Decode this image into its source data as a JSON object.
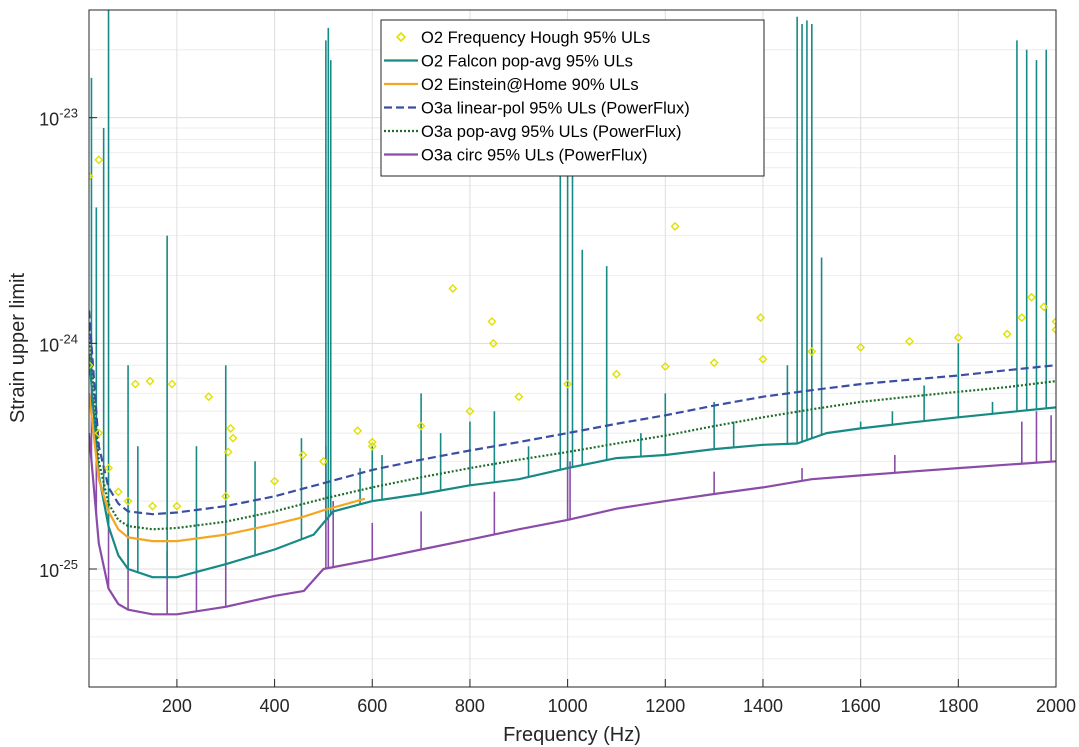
{
  "chart_data": {
    "type": "line",
    "title": "",
    "xlabel": "Frequency (Hz)",
    "ylabel": "Strain upper limit",
    "xlim": [
      20,
      2000
    ],
    "ylim": [
      3e-26,
      3e-23
    ],
    "yscale": "log",
    "grid": true,
    "legend_position": "top-center",
    "x_ticks": [
      200,
      400,
      600,
      800,
      1000,
      1200,
      1400,
      1600,
      1800,
      2000
    ],
    "x_tick_labels": [
      "200",
      "400",
      "600",
      "800",
      "1000",
      "1200",
      "1400",
      "1600",
      "1800",
      "2000"
    ],
    "y_ticks": [
      1e-25,
      1e-24,
      1e-23
    ],
    "y_tick_labels": [
      {
        "base": "10",
        "exp": "-25"
      },
      {
        "base": "10",
        "exp": "-24"
      },
      {
        "base": "10",
        "exp": "-23"
      }
    ],
    "series": [
      {
        "name": "O2 Frequency Hough 95% ULs",
        "style": "diamond-markers",
        "color": "#e0e000",
        "x": [
          20,
          40,
          60,
          80,
          100,
          150,
          200,
          300,
          400,
          500,
          600,
          700,
          800,
          900,
          1000,
          1100,
          1200,
          1300,
          1400,
          1500,
          1600,
          1700,
          1800,
          1900,
          2000
        ],
        "y": [
          8e-25,
          4e-25,
          2.8e-25,
          2.2e-25,
          2e-25,
          1.9e-25,
          1.9e-25,
          2.1e-25,
          2.45e-25,
          3e-25,
          3.65e-25,
          4.3e-25,
          5e-25,
          5.8e-25,
          6.6e-25,
          7.3e-25,
          7.9e-25,
          8.2e-25,
          8.5e-25,
          9.2e-25,
          9.6e-25,
          1.02e-24,
          1.06e-24,
          1.1e-24,
          1.15e-24
        ],
        "outliers": {
          "x": [
            20,
            40,
            115,
            145,
            190,
            265,
            305,
            310,
            315,
            458,
            570,
            600,
            765,
            845,
            848,
            1220,
            1395,
            1930,
            1950,
            1975,
            2000
          ],
          "y": [
            5.5e-24,
            6.5e-24,
            6.6e-25,
            6.8e-25,
            6.6e-25,
            5.8e-25,
            3.3e-25,
            4.2e-25,
            3.8e-25,
            3.2e-25,
            4.1e-25,
            3.5e-25,
            1.75e-24,
            1.25e-24,
            1e-24,
            3.3e-24,
            1.3e-24,
            1.3e-24,
            1.6e-24,
            1.45e-24,
            1.25e-24
          ]
        }
      },
      {
        "name": "O2 Falcon pop-avg 95% ULs",
        "style": "solid",
        "color": "#178a86",
        "x": [
          20,
          40,
          60,
          80,
          100,
          150,
          200,
          300,
          400,
          480,
          520,
          600,
          700,
          800,
          900,
          1000,
          1100,
          1200,
          1300,
          1400,
          1470,
          1530,
          1600,
          1700,
          1800,
          1900,
          1920,
          2000
        ],
        "y": [
          9e-25,
          2.6e-25,
          1.55e-25,
          1.15e-25,
          1e-25,
          9.2e-26,
          9.2e-26,
          1.05e-25,
          1.22e-25,
          1.42e-25,
          1.8e-25,
          2e-25,
          2.15e-25,
          2.35e-25,
          2.5e-25,
          2.8e-25,
          3.1e-25,
          3.2e-25,
          3.4e-25,
          3.55e-25,
          3.6e-25,
          4e-25,
          4.2e-25,
          4.45e-25,
          4.7e-25,
          4.95e-25,
          5e-25,
          5.2e-25
        ],
        "spikes": {
          "x": [
            25,
            35,
            50,
            60,
            100,
            120,
            180,
            240,
            300,
            360,
            455,
            505,
            510,
            515,
            575,
            600,
            620,
            700,
            740,
            800,
            850,
            920,
            985,
            1000,
            1010,
            1030,
            1080,
            1150,
            1200,
            1300,
            1340,
            1450,
            1470,
            1480,
            1490,
            1500,
            1520,
            1600,
            1665,
            1730,
            1800,
            1870,
            1920,
            1940,
            1960,
            1980
          ],
          "y": [
            1.5e-23,
            4e-24,
            9e-24,
            3e-23,
            8e-25,
            3.5e-25,
            3e-24,
            3.5e-25,
            8e-25,
            3e-25,
            3.8e-25,
            2.2e-23,
            2.5e-23,
            1.8e-23,
            2.8e-25,
            3.5e-25,
            3.2e-25,
            6e-25,
            4e-25,
            4.5e-25,
            5e-25,
            3.5e-25,
            6e-24,
            1.4e-23,
            1.2e-23,
            2.6e-24,
            2.2e-24,
            4e-25,
            6e-25,
            5.5e-25,
            4.5e-25,
            8e-25,
            2.8e-23,
            2.6e-23,
            2.7e-23,
            2.6e-23,
            2.4e-24,
            4.5e-25,
            5e-25,
            6.5e-25,
            1e-24,
            5.5e-25,
            2.2e-23,
            2e-23,
            1.8e-23,
            2e-23
          ]
        }
      },
      {
        "name": "O2 Einstein@Home 90% ULs",
        "style": "solid",
        "color": "#f5a623",
        "x": [
          20,
          40,
          60,
          80,
          100,
          150,
          200,
          300,
          400,
          450,
          500,
          550,
          585
        ],
        "y": [
          6e-25,
          2.5e-25,
          1.8e-25,
          1.5e-25,
          1.38e-25,
          1.33e-25,
          1.33e-25,
          1.42e-25,
          1.58e-25,
          1.68e-25,
          1.82e-25,
          1.95e-25,
          2.05e-25
        ]
      },
      {
        "name": "O3a linear-pol 95% ULs (PowerFlux)",
        "style": "dashed",
        "color": "#3a4fa3",
        "x": [
          20,
          40,
          60,
          80,
          100,
          150,
          200,
          300,
          400,
          500,
          600,
          700,
          800,
          900,
          1000,
          1100,
          1200,
          1300,
          1400,
          1500,
          1600,
          1700,
          1800,
          1900,
          2000
        ],
        "y": [
          1.4e-24,
          3.5e-25,
          2.3e-25,
          1.95e-25,
          1.8e-25,
          1.75e-25,
          1.78e-25,
          1.9e-25,
          2.1e-25,
          2.4e-25,
          2.75e-25,
          3.05e-25,
          3.35e-25,
          3.65e-25,
          4e-25,
          4.4e-25,
          4.8e-25,
          5.3e-25,
          5.8e-25,
          6.2e-25,
          6.6e-25,
          6.9e-25,
          7.2e-25,
          7.6e-25,
          8e-25
        ]
      },
      {
        "name": "O3a pop-avg 95% ULs (PowerFlux)",
        "style": "dotted",
        "color": "#1e6e2a",
        "x": [
          20,
          40,
          60,
          80,
          100,
          150,
          200,
          300,
          400,
          500,
          600,
          700,
          800,
          900,
          1000,
          1100,
          1200,
          1300,
          1400,
          1500,
          1600,
          1700,
          1800,
          1900,
          2000
        ],
        "y": [
          1.2e-24,
          3e-25,
          1.95e-25,
          1.65e-25,
          1.55e-25,
          1.5e-25,
          1.52e-25,
          1.62e-25,
          1.8e-25,
          2.05e-25,
          2.3e-25,
          2.55e-25,
          2.8e-25,
          3.05e-25,
          3.3e-25,
          3.6e-25,
          3.9e-25,
          4.3e-25,
          4.7e-25,
          5.1e-25,
          5.5e-25,
          5.8e-25,
          6.1e-25,
          6.4e-25,
          6.8e-25
        ]
      },
      {
        "name": "O3a circ 95% ULs (PowerFlux)",
        "style": "solid",
        "color": "#8a4ca8",
        "x": [
          20,
          40,
          60,
          80,
          100,
          150,
          200,
          300,
          400,
          460,
          500,
          600,
          700,
          800,
          900,
          1000,
          1100,
          1200,
          1300,
          1400,
          1500,
          1600,
          1700,
          1800,
          1900,
          2000
        ],
        "y": [
          4e-25,
          1.3e-25,
          8.2e-26,
          7e-26,
          6.6e-26,
          6.3e-26,
          6.3e-26,
          6.8e-26,
          7.6e-26,
          8e-26,
          1e-25,
          1.1e-25,
          1.22e-25,
          1.35e-25,
          1.5e-25,
          1.65e-25,
          1.85e-25,
          2e-25,
          2.15e-25,
          2.3e-25,
          2.5e-25,
          2.6e-25,
          2.7e-25,
          2.8e-25,
          2.9e-25,
          3e-25
        ],
        "spikes": {
          "x": [
            25,
            35,
            60,
            100,
            180,
            240,
            300,
            505,
            510,
            520,
            600,
            700,
            850,
            1000,
            1005,
            1300,
            1480,
            1670,
            1930,
            1960,
            1990
          ],
          "y": [
            1e-24,
            5e-25,
            2e-25,
            1.6e-25,
            1.2e-25,
            1e-25,
            1.1e-25,
            3.5e-25,
            3e-25,
            2e-25,
            1.6e-25,
            1.8e-25,
            2.2e-25,
            3e-25,
            3e-25,
            2.7e-25,
            2.8e-25,
            3.2e-25,
            4.5e-25,
            5e-25,
            4.8e-25
          ]
        }
      }
    ]
  }
}
